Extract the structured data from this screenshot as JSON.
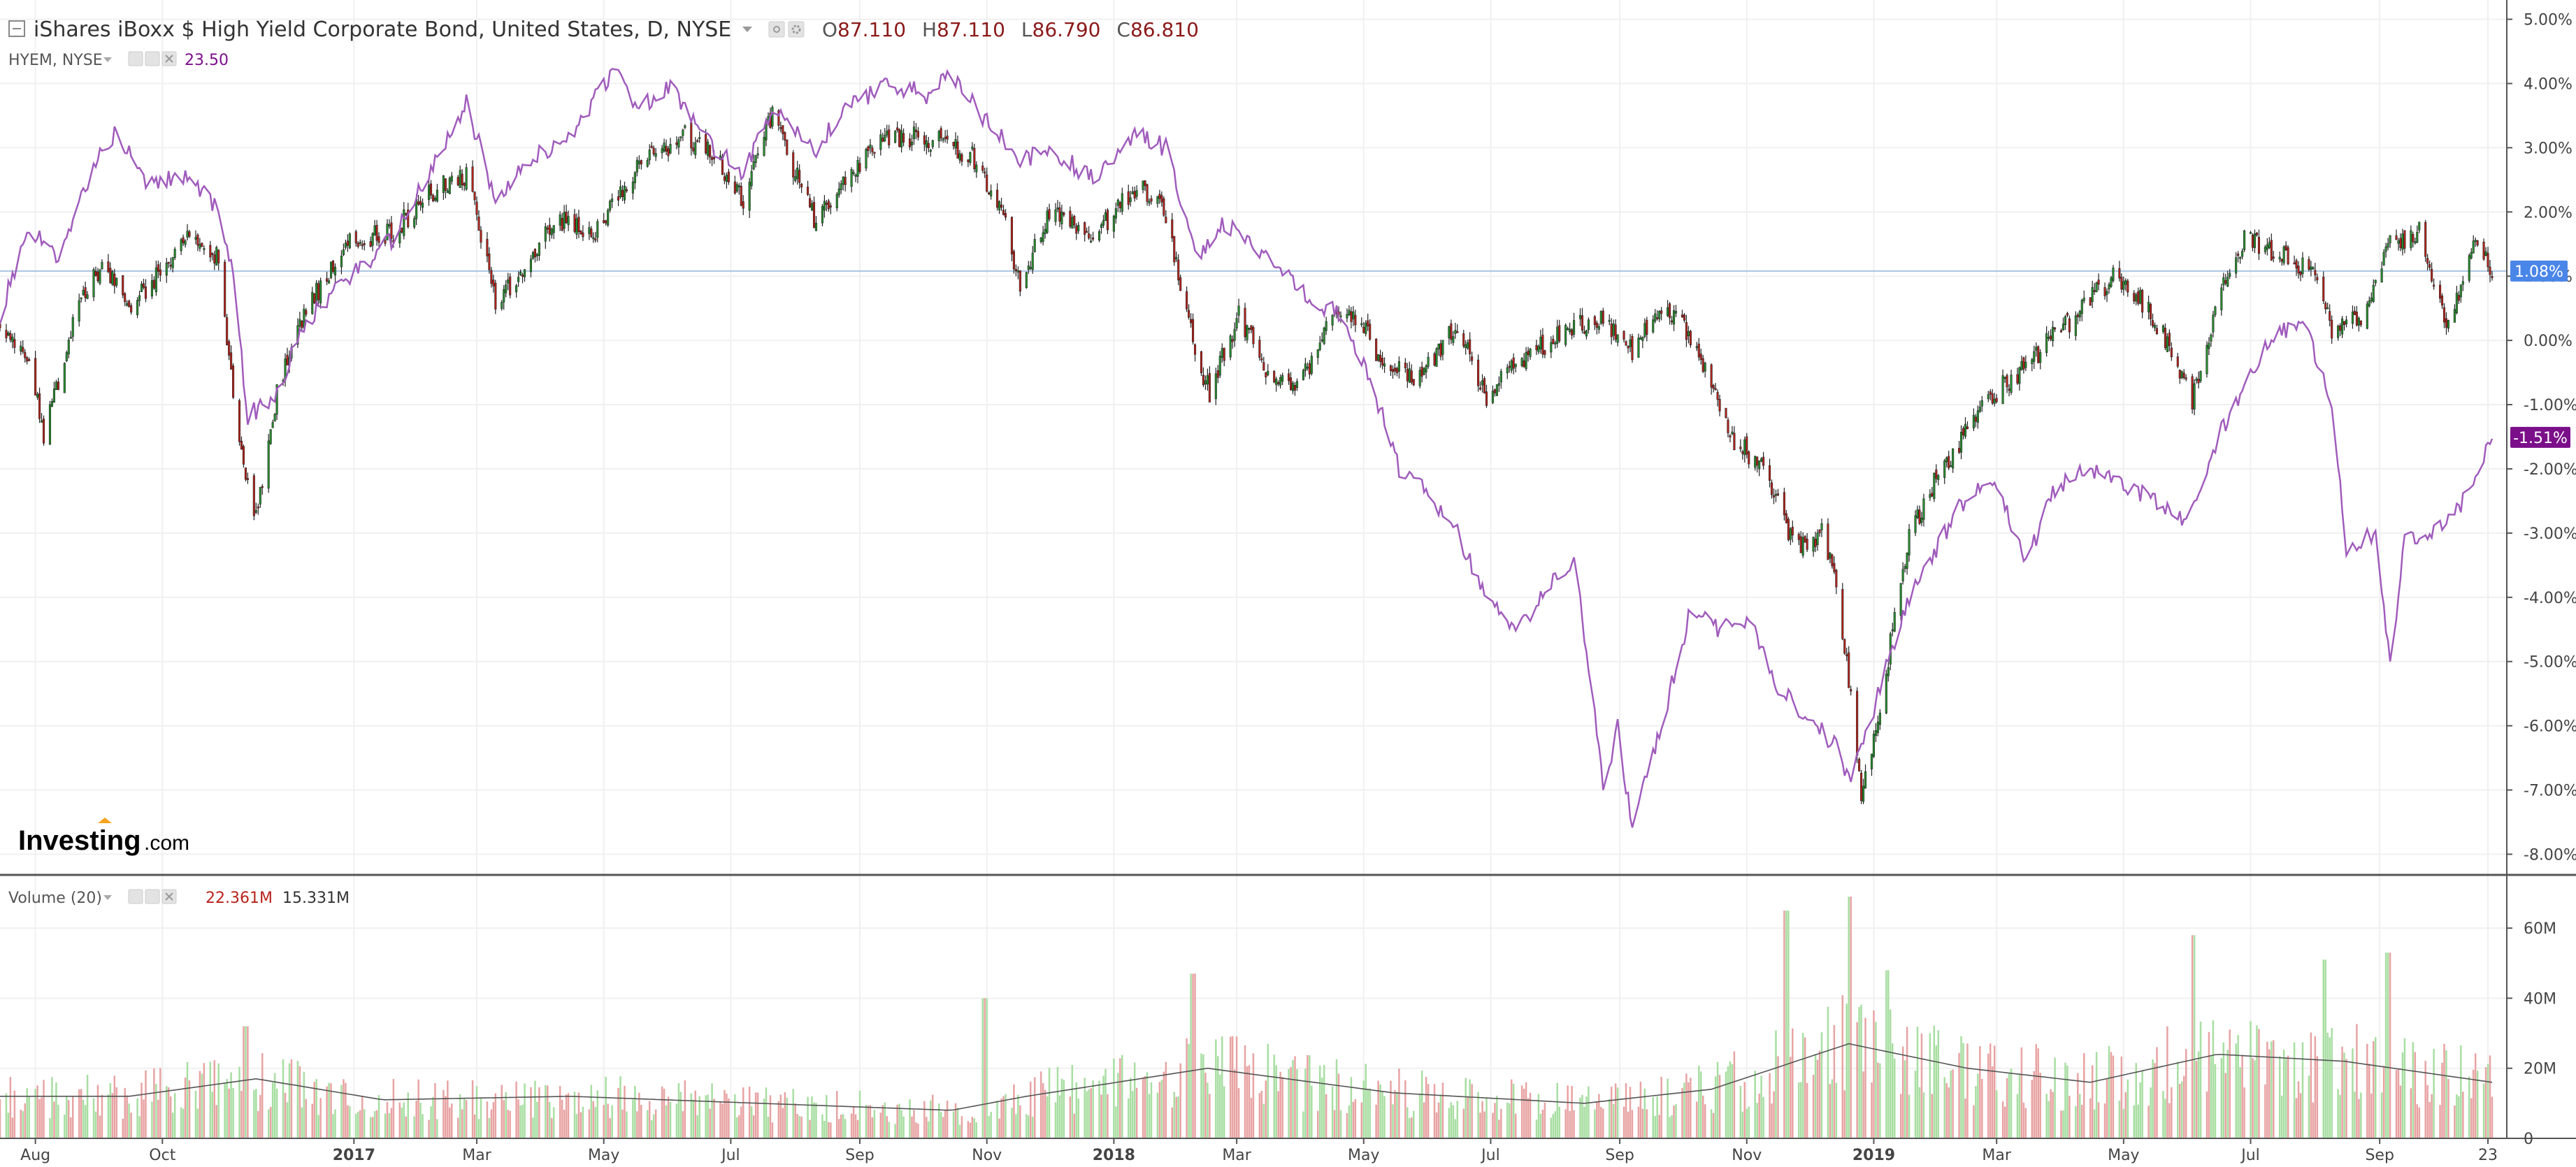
{
  "header": {
    "title": "iShares iBoxx $ High Yield Corporate Bond, United States, D, NYSE",
    "ohlc": [
      {
        "label": "O",
        "value": "87.110"
      },
      {
        "label": "H",
        "value": "87.110"
      },
      {
        "label": "L",
        "value": "86.790"
      },
      {
        "label": "C",
        "value": "86.810"
      }
    ]
  },
  "compare": {
    "label": "HYEM, NYSE",
    "value": "23.50"
  },
  "volume_legend": {
    "label": "Volume (20)",
    "value1": "22.361M",
    "value2": "15.331M"
  },
  "logo": {
    "main": "Investing",
    "suffix": ".com"
  },
  "badges": {
    "hyg": "1.08%",
    "hyem": "-1.51%"
  },
  "colors": {
    "up": "#26912e",
    "down": "#b8231c",
    "compare_line": "#a05cbc",
    "price_line": "#aac4e0",
    "vol_up": "#a8dea2",
    "vol_down": "#e8a3a3",
    "badge_blue": "#4a86e8",
    "badge_purple": "#7b0f8a",
    "ohlc_value": "#8b1a1a",
    "compare_value": "#7b0f8a"
  },
  "chart_data": [
    {
      "type": "candlestick",
      "name": "iShares iBoxx $ High Yield Corporate Bond, United States, D, NYSE",
      "y_unit": "% change",
      "ylim": [
        -8.3,
        5.3
      ],
      "yticks": [
        "5.00%",
        "4.00%",
        "3.00%",
        "2.00%",
        "1.00%",
        "0.00%",
        "-1.00%",
        "-2.00%",
        "-3.00%",
        "-4.00%",
        "-5.00%",
        "-6.00%",
        "-7.00%",
        "-8.00%"
      ],
      "ytick_values": [
        5,
        4,
        3,
        2,
        1,
        0,
        -1,
        -2,
        -3,
        -4,
        -5,
        -6,
        -7,
        -8
      ],
      "x_start": "2016-07-15",
      "x_end": "2019-10-25",
      "xticks": [
        "Aug",
        "Oct",
        "2017",
        "Mar",
        "May",
        "Jul",
        "Sep",
        "Nov",
        "2018",
        "Mar",
        "May",
        "Jul",
        "Sep",
        "Nov",
        "2019",
        "Mar",
        "May",
        "Jul",
        "Sep",
        "23"
      ],
      "xtick_dates": [
        "2016-08-01",
        "2016-10-01",
        "2017-01-01",
        "2017-03-01",
        "2017-05-01",
        "2017-07-01",
        "2017-09-01",
        "2017-11-01",
        "2018-01-01",
        "2018-03-01",
        "2018-05-01",
        "2018-07-01",
        "2018-09-01",
        "2018-11-01",
        "2019-01-01",
        "2019-03-01",
        "2019-05-01",
        "2019-07-01",
        "2019-09-01",
        "2019-10-23"
      ],
      "grid": true,
      "last_value": 1.08,
      "close_anchors": [
        {
          "date": "2016-07-15",
          "pct": 0.2
        },
        {
          "date": "2016-07-29",
          "pct": -0.3
        },
        {
          "date": "2016-08-05",
          "pct": -1.5
        },
        {
          "date": "2016-08-19",
          "pct": 0.3
        },
        {
          "date": "2016-09-02",
          "pct": 1.2
        },
        {
          "date": "2016-09-16",
          "pct": 0.5
        },
        {
          "date": "2016-09-30",
          "pct": 1.1
        },
        {
          "date": "2016-10-14",
          "pct": 1.6
        },
        {
          "date": "2016-10-28",
          "pct": 1.3
        },
        {
          "date": "2016-11-04",
          "pct": -0.8
        },
        {
          "date": "2016-11-14",
          "pct": -2.9
        },
        {
          "date": "2016-11-25",
          "pct": -0.8
        },
        {
          "date": "2016-12-09",
          "pct": 0.5
        },
        {
          "date": "2016-12-30",
          "pct": 1.5
        },
        {
          "date": "2017-01-20",
          "pct": 1.7
        },
        {
          "date": "2017-02-10",
          "pct": 2.4
        },
        {
          "date": "2017-02-24",
          "pct": 2.6
        },
        {
          "date": "2017-03-10",
          "pct": 0.6
        },
        {
          "date": "2017-03-24",
          "pct": 1.0
        },
        {
          "date": "2017-04-07",
          "pct": 1.9
        },
        {
          "date": "2017-04-28",
          "pct": 1.7
        },
        {
          "date": "2017-05-19",
          "pct": 2.8
        },
        {
          "date": "2017-06-09",
          "pct": 3.2
        },
        {
          "date": "2017-06-23",
          "pct": 2.9
        },
        {
          "date": "2017-07-07",
          "pct": 2.2
        },
        {
          "date": "2017-07-21",
          "pct": 3.5
        },
        {
          "date": "2017-08-11",
          "pct": 1.8
        },
        {
          "date": "2017-08-25",
          "pct": 2.5
        },
        {
          "date": "2017-09-15",
          "pct": 3.2
        },
        {
          "date": "2017-10-13",
          "pct": 3.1
        },
        {
          "date": "2017-10-27",
          "pct": 2.8
        },
        {
          "date": "2017-11-10",
          "pct": 1.8
        },
        {
          "date": "2017-11-17",
          "pct": 0.8
        },
        {
          "date": "2017-12-01",
          "pct": 2.0
        },
        {
          "date": "2017-12-22",
          "pct": 1.6
        },
        {
          "date": "2018-01-12",
          "pct": 2.4
        },
        {
          "date": "2018-01-26",
          "pct": 2.0
        },
        {
          "date": "2018-02-09",
          "pct": -0.2
        },
        {
          "date": "2018-02-16",
          "pct": -0.8
        },
        {
          "date": "2018-03-02",
          "pct": 0.4
        },
        {
          "date": "2018-03-16",
          "pct": -0.5
        },
        {
          "date": "2018-03-30",
          "pct": -0.8
        },
        {
          "date": "2018-04-13",
          "pct": 0.2
        },
        {
          "date": "2018-04-27",
          "pct": 0.4
        },
        {
          "date": "2018-05-11",
          "pct": -0.4
        },
        {
          "date": "2018-05-25",
          "pct": -0.6
        },
        {
          "date": "2018-06-15",
          "pct": 0.2
        },
        {
          "date": "2018-06-29",
          "pct": -0.9
        },
        {
          "date": "2018-07-13",
          "pct": -0.4
        },
        {
          "date": "2018-08-03",
          "pct": 0.1
        },
        {
          "date": "2018-08-24",
          "pct": 0.4
        },
        {
          "date": "2018-09-07",
          "pct": -0.2
        },
        {
          "date": "2018-09-21",
          "pct": 0.5
        },
        {
          "date": "2018-10-05",
          "pct": 0.1
        },
        {
          "date": "2018-10-19",
          "pct": -1.0
        },
        {
          "date": "2018-10-26",
          "pct": -1.6
        },
        {
          "date": "2018-11-09",
          "pct": -1.9
        },
        {
          "date": "2018-11-23",
          "pct": -3.2
        },
        {
          "date": "2018-12-07",
          "pct": -3.0
        },
        {
          "date": "2018-12-14",
          "pct": -3.8
        },
        {
          "date": "2018-12-21",
          "pct": -5.5
        },
        {
          "date": "2018-12-26",
          "pct": -7.1
        },
        {
          "date": "2019-01-04",
          "pct": -5.7
        },
        {
          "date": "2019-01-18",
          "pct": -3.0
        },
        {
          "date": "2019-02-01",
          "pct": -2.1
        },
        {
          "date": "2019-02-22",
          "pct": -1.0
        },
        {
          "date": "2019-03-15",
          "pct": -0.4
        },
        {
          "date": "2019-04-05",
          "pct": 0.3
        },
        {
          "date": "2019-04-26",
          "pct": 1.0
        },
        {
          "date": "2019-05-10",
          "pct": 0.6
        },
        {
          "date": "2019-05-24",
          "pct": -0.1
        },
        {
          "date": "2019-06-03",
          "pct": -0.9
        },
        {
          "date": "2019-06-14",
          "pct": 0.5
        },
        {
          "date": "2019-06-28",
          "pct": 1.6
        },
        {
          "date": "2019-07-19",
          "pct": 1.3
        },
        {
          "date": "2019-08-02",
          "pct": 1.0
        },
        {
          "date": "2019-08-09",
          "pct": 0.2
        },
        {
          "date": "2019-08-23",
          "pct": 0.4
        },
        {
          "date": "2019-09-06",
          "pct": 1.5
        },
        {
          "date": "2019-09-20",
          "pct": 1.7
        },
        {
          "date": "2019-10-04",
          "pct": 0.2
        },
        {
          "date": "2019-10-18",
          "pct": 1.6
        },
        {
          "date": "2019-10-25",
          "pct": 1.08
        }
      ]
    },
    {
      "type": "line",
      "name": "HYEM, NYSE",
      "y_unit": "% change",
      "last_value": -1.51,
      "points": [
        {
          "date": "2016-07-15",
          "pct": 0.4
        },
        {
          "date": "2016-07-29",
          "pct": 1.8
        },
        {
          "date": "2016-08-12",
          "pct": 1.2
        },
        {
          "date": "2016-08-26",
          "pct": 2.5
        },
        {
          "date": "2016-09-09",
          "pct": 3.3
        },
        {
          "date": "2016-09-23",
          "pct": 2.4
        },
        {
          "date": "2016-10-14",
          "pct": 2.6
        },
        {
          "date": "2016-10-28",
          "pct": 2.0
        },
        {
          "date": "2016-11-04",
          "pct": 1.0
        },
        {
          "date": "2016-11-11",
          "pct": -1.2
        },
        {
          "date": "2016-11-25",
          "pct": -0.8
        },
        {
          "date": "2016-12-09",
          "pct": 0.3
        },
        {
          "date": "2016-12-30",
          "pct": 1.0
        },
        {
          "date": "2017-01-20",
          "pct": 1.6
        },
        {
          "date": "2017-02-10",
          "pct": 2.8
        },
        {
          "date": "2017-02-24",
          "pct": 3.7
        },
        {
          "date": "2017-03-10",
          "pct": 2.2
        },
        {
          "date": "2017-03-24",
          "pct": 2.8
        },
        {
          "date": "2017-04-14",
          "pct": 3.1
        },
        {
          "date": "2017-05-05",
          "pct": 4.2
        },
        {
          "date": "2017-05-19",
          "pct": 3.6
        },
        {
          "date": "2017-06-02",
          "pct": 4.0
        },
        {
          "date": "2017-06-16",
          "pct": 3.2
        },
        {
          "date": "2017-07-07",
          "pct": 2.6
        },
        {
          "date": "2017-07-21",
          "pct": 3.6
        },
        {
          "date": "2017-08-11",
          "pct": 3.0
        },
        {
          "date": "2017-08-25",
          "pct": 3.6
        },
        {
          "date": "2017-09-15",
          "pct": 4.0
        },
        {
          "date": "2017-10-06",
          "pct": 3.8
        },
        {
          "date": "2017-10-13",
          "pct": 4.2
        },
        {
          "date": "2017-10-27",
          "pct": 3.6
        },
        {
          "date": "2017-11-10",
          "pct": 3.1
        },
        {
          "date": "2017-11-17",
          "pct": 2.8
        },
        {
          "date": "2017-12-01",
          "pct": 3.0
        },
        {
          "date": "2017-12-22",
          "pct": 2.5
        },
        {
          "date": "2018-01-12",
          "pct": 3.2
        },
        {
          "date": "2018-01-26",
          "pct": 3.0
        },
        {
          "date": "2018-02-09",
          "pct": 1.3
        },
        {
          "date": "2018-02-23",
          "pct": 1.8
        },
        {
          "date": "2018-03-09",
          "pct": 1.5
        },
        {
          "date": "2018-03-23",
          "pct": 1.1
        },
        {
          "date": "2018-04-06",
          "pct": 0.6
        },
        {
          "date": "2018-04-20",
          "pct": 0.4
        },
        {
          "date": "2018-05-04",
          "pct": -0.6
        },
        {
          "date": "2018-05-18",
          "pct": -2.0
        },
        {
          "date": "2018-06-01",
          "pct": -2.4
        },
        {
          "date": "2018-06-15",
          "pct": -3.0
        },
        {
          "date": "2018-06-29",
          "pct": -4.0
        },
        {
          "date": "2018-07-13",
          "pct": -4.6
        },
        {
          "date": "2018-07-27",
          "pct": -3.9
        },
        {
          "date": "2018-08-10",
          "pct": -3.4
        },
        {
          "date": "2018-08-17",
          "pct": -5.0
        },
        {
          "date": "2018-08-24",
          "pct": -7.0
        },
        {
          "date": "2018-08-31",
          "pct": -6.0
        },
        {
          "date": "2018-09-07",
          "pct": -7.6
        },
        {
          "date": "2018-09-21",
          "pct": -6.0
        },
        {
          "date": "2018-10-05",
          "pct": -4.2
        },
        {
          "date": "2018-10-19",
          "pct": -4.5
        },
        {
          "date": "2018-11-02",
          "pct": -4.3
        },
        {
          "date": "2018-11-16",
          "pct": -5.4
        },
        {
          "date": "2018-11-30",
          "pct": -5.9
        },
        {
          "date": "2018-12-14",
          "pct": -6.3
        },
        {
          "date": "2018-12-21",
          "pct": -6.9
        },
        {
          "date": "2019-01-04",
          "pct": -5.4
        },
        {
          "date": "2019-01-18",
          "pct": -4.0
        },
        {
          "date": "2019-02-01",
          "pct": -3.2
        },
        {
          "date": "2019-02-15",
          "pct": -2.4
        },
        {
          "date": "2019-03-01",
          "pct": -2.2
        },
        {
          "date": "2019-03-15",
          "pct": -3.5
        },
        {
          "date": "2019-03-29",
          "pct": -2.3
        },
        {
          "date": "2019-04-12",
          "pct": -2.0
        },
        {
          "date": "2019-05-03",
          "pct": -2.3
        },
        {
          "date": "2019-05-17",
          "pct": -2.5
        },
        {
          "date": "2019-05-31",
          "pct": -2.8
        },
        {
          "date": "2019-06-14",
          "pct": -1.6
        },
        {
          "date": "2019-06-28",
          "pct": -0.7
        },
        {
          "date": "2019-07-12",
          "pct": 0.1
        },
        {
          "date": "2019-07-26",
          "pct": 0.3
        },
        {
          "date": "2019-08-09",
          "pct": -1.0
        },
        {
          "date": "2019-08-16",
          "pct": -3.3
        },
        {
          "date": "2019-08-30",
          "pct": -3.0
        },
        {
          "date": "2019-09-06",
          "pct": -5.1
        },
        {
          "date": "2019-09-13",
          "pct": -3.1
        },
        {
          "date": "2019-09-27",
          "pct": -3.0
        },
        {
          "date": "2019-10-11",
          "pct": -2.5
        },
        {
          "date": "2019-10-25",
          "pct": -1.51
        }
      ]
    },
    {
      "type": "bar",
      "name": "Volume (20)",
      "y_unit": "shares",
      "ylim": [
        0,
        72000000
      ],
      "yticks": [
        "60M",
        "40M",
        "20M",
        "0"
      ],
      "ytick_values": [
        60000000,
        40000000,
        20000000,
        0
      ],
      "last_value": "22.361M",
      "average_value": "15.331M",
      "average_line": [
        {
          "date": "2016-07-15",
          "value": 12000000
        },
        {
          "date": "2016-09-15",
          "value": 12000000
        },
        {
          "date": "2016-11-15",
          "value": 17000000
        },
        {
          "date": "2017-01-15",
          "value": 11000000
        },
        {
          "date": "2017-04-15",
          "value": 12000000
        },
        {
          "date": "2017-07-15",
          "value": 10000000
        },
        {
          "date": "2017-10-15",
          "value": 8000000
        },
        {
          "date": "2017-11-20",
          "value": 12000000
        },
        {
          "date": "2018-02-15",
          "value": 20000000
        },
        {
          "date": "2018-05-15",
          "value": 13000000
        },
        {
          "date": "2018-08-15",
          "value": 10000000
        },
        {
          "date": "2018-10-15",
          "value": 14000000
        },
        {
          "date": "2018-12-20",
          "value": 27000000
        },
        {
          "date": "2019-02-15",
          "value": 20000000
        },
        {
          "date": "2019-04-15",
          "value": 16000000
        },
        {
          "date": "2019-06-15",
          "value": 24000000
        },
        {
          "date": "2019-08-15",
          "value": 22000000
        },
        {
          "date": "2019-10-25",
          "value": 16000000
        }
      ],
      "spikes": [
        {
          "date": "2016-11-10",
          "value": 32000000
        },
        {
          "date": "2017-10-31",
          "value": 40000000
        },
        {
          "date": "2018-02-08",
          "value": 47000000
        },
        {
          "date": "2018-11-20",
          "value": 65000000
        },
        {
          "date": "2018-12-21",
          "value": 69000000
        },
        {
          "date": "2019-01-07",
          "value": 48000000
        },
        {
          "date": "2019-06-03",
          "value": 58000000
        },
        {
          "date": "2019-08-05",
          "value": 51000000
        },
        {
          "date": "2019-09-05",
          "value": 53000000
        }
      ]
    }
  ]
}
